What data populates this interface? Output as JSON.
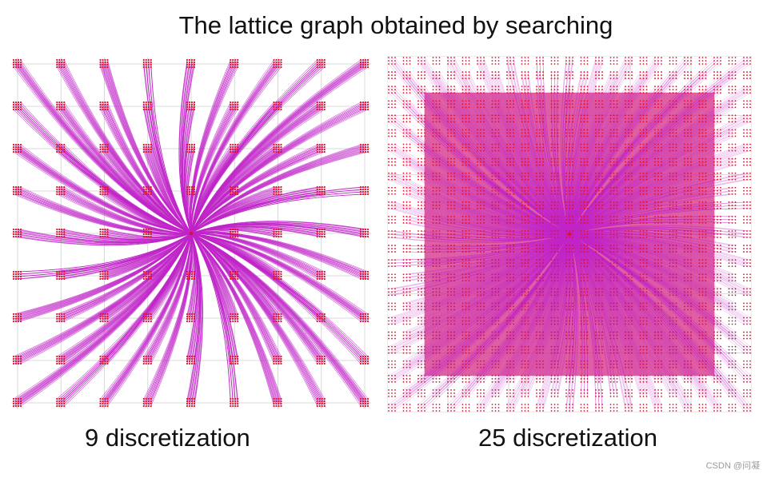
{
  "title": "The lattice graph obtained by searching",
  "panels": [
    {
      "caption": "9 discretization",
      "discretization": 9,
      "grid_cells": 9
    },
    {
      "caption": "25 discretization",
      "discretization": 25,
      "grid_cells": 25
    }
  ],
  "colors": {
    "edge": "#c026c8",
    "node": "#e0102a",
    "dense_fill": "#d42a86",
    "grid": "#d9d9d9"
  },
  "watermark": "CSDN @问凝"
}
